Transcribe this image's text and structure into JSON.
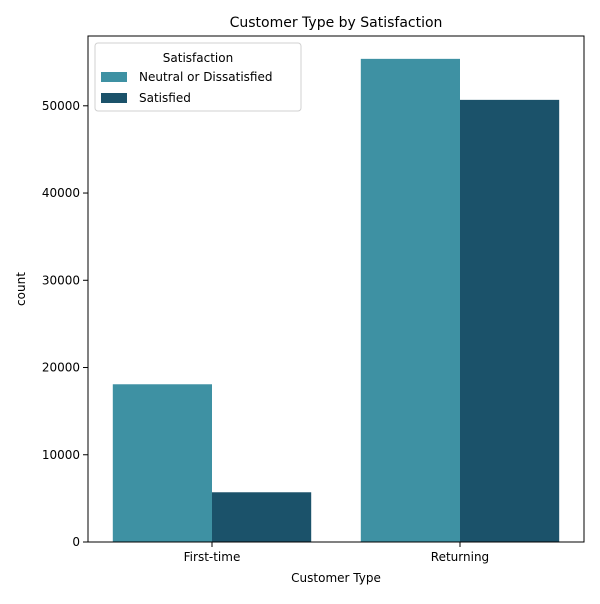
{
  "chart_data": {
    "type": "bar",
    "title": "Customer Type by Satisfaction",
    "xlabel": "Customer Type",
    "ylabel": "count",
    "categories": [
      "First-time",
      "Returning"
    ],
    "series": [
      {
        "name": "Neutral or Dissatisfied",
        "values": [
          18080,
          55380
        ],
        "color": "#3e91a3"
      },
      {
        "name": "Satisfied",
        "values": [
          5700,
          50680
        ],
        "color": "#1b526a"
      }
    ],
    "ylim": [
      0,
      58000
    ],
    "yticks": [
      0,
      10000,
      20000,
      30000,
      40000,
      50000
    ],
    "grid": false,
    "legend": {
      "title": "Satisfaction",
      "placement": "top-left"
    }
  }
}
